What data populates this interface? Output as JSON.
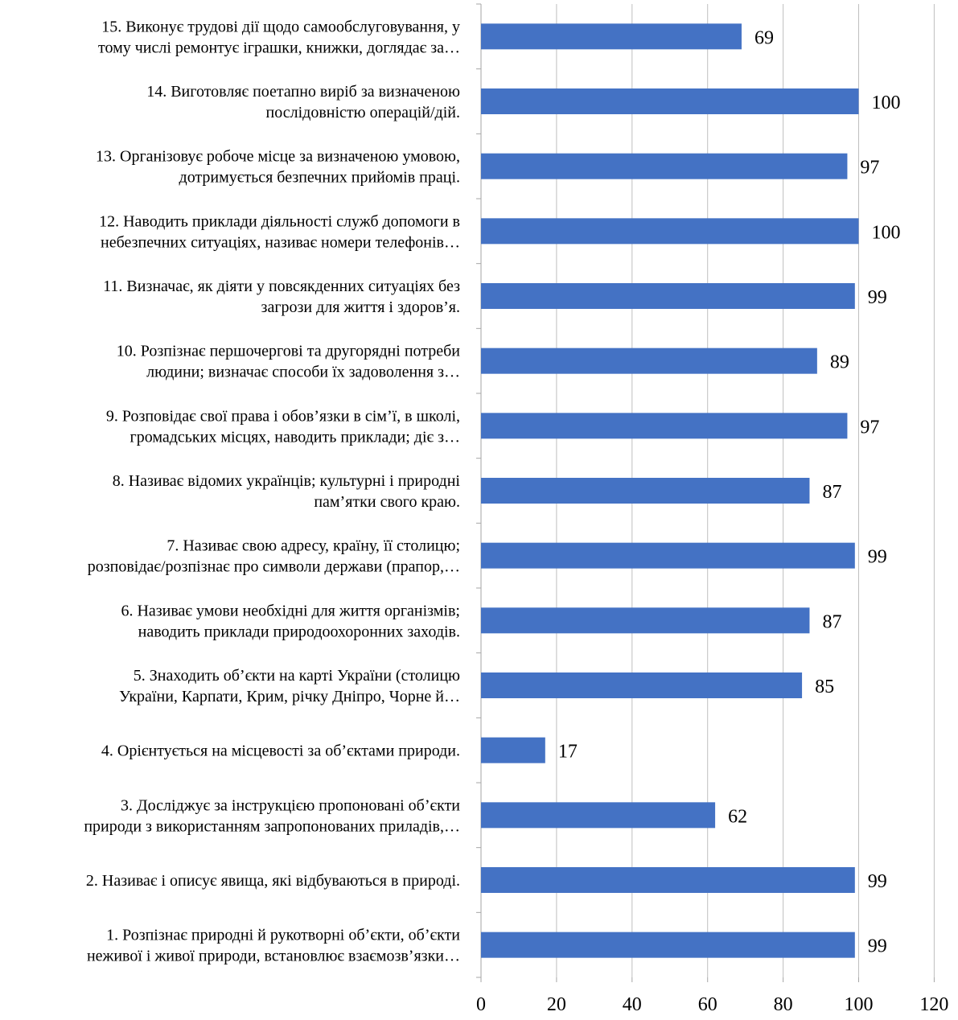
{
  "chart_data": {
    "type": "bar",
    "orientation": "horizontal",
    "categories": [
      [
        "15. Виконує трудові дії щодо самообслуговування,  у",
        "тому числі ремонтує іграшки, книжки, доглядає за…"
      ],
      [
        "14. Виготовляє поетапно виріб за визначеною",
        "послідовністю операцій/дій."
      ],
      [
        "13. Організовує робоче місце за визначеною умовою,",
        "дотримується безпечних прийомів праці."
      ],
      [
        "12. Наводить приклади діяльності служб допомоги в",
        "небезпечних ситуаціях, називає номери телефонів…"
      ],
      [
        "11. Визначає, як діяти у повсякденних ситуаціях без",
        "загрози для життя і здоров’я."
      ],
      [
        "10. Розпізнає першочергові та другорядні потреби",
        "людини; визначає способи їх задоволення з…"
      ],
      [
        "9. Розповідає свої права і обов’язки в сім’ї, в школі,",
        "громадських місцях, наводить приклади; діє з…"
      ],
      [
        "8. Називає відомих українців; культурні і природні",
        "пам’ятки свого краю."
      ],
      [
        "7. Називає свою адресу, країну, її столицю;",
        "розповідає/розпізнає про символи держави (прапор,…"
      ],
      [
        "6. Називає умови необхідні для життя організмів;",
        "наводить приклади природоохоронних заходів."
      ],
      [
        "5. Знаходить об’єкти на карті України (столицю",
        "України, Карпати, Крим, річку Дніпро, Чорне й…"
      ],
      [
        "4. Орієнтується на місцевості за об’єктами природи."
      ],
      [
        "3. Досліджує за інструкцією пропоновані об’єкти",
        "природи з використанням запропонованих приладів,…"
      ],
      [
        "2. Називає і описує явища, які відбуваються в природі."
      ],
      [
        "1. Розпізнає природні й рукотворні об’єкти, об’єкти",
        "неживої і живої природи, встановлює взаємозв’язки…"
      ]
    ],
    "values": [
      69,
      100,
      97,
      100,
      99,
      89,
      97,
      87,
      99,
      87,
      85,
      17,
      62,
      99,
      99
    ],
    "x_ticks": [
      0,
      20,
      40,
      60,
      80,
      100,
      120
    ],
    "xlim": [
      0,
      120
    ],
    "grid": "vertical major gridlines",
    "legend": "none",
    "data_labels": true,
    "bar_color": "#4472c4",
    "gridline_color": "#bfbfbf",
    "axis_color": "#a6a6a6"
  }
}
